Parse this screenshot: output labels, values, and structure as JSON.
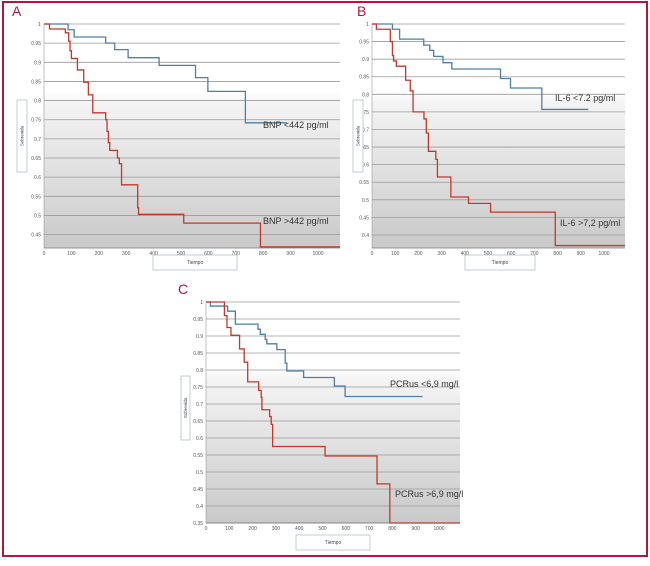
{
  "colors": {
    "frame": "#b0173c",
    "panel_letter": "#b0173c",
    "low_group": "#4f7ea6",
    "high_group": "#c0392b",
    "grid": "#9a9a9a"
  },
  "chart_data": [
    {
      "panel": "A",
      "type": "line",
      "step": true,
      "xlabel": "Tiempo",
      "ylabel": "Sobrevida",
      "xlim": [
        0,
        1100
      ],
      "ylim": [
        0.415,
        1
      ],
      "xticks": [
        0,
        100,
        200,
        300,
        400,
        500,
        600,
        700,
        800,
        900,
        1000
      ],
      "yticks": [
        "1",
        "0.95",
        "0.9",
        "0.85",
        "0.8",
        "0.75",
        "0.7",
        "0.65",
        "0.6",
        "0.55",
        "0.5",
        "0.45"
      ],
      "grid": true,
      "series": [
        {
          "name": "BNP <442 pg/ml",
          "group": "low",
          "points": [
            [
              0,
              1
            ],
            [
              88,
              0.985
            ],
            [
              110,
              0.966
            ],
            [
              225,
              0.95
            ],
            [
              258,
              0.933
            ],
            [
              307,
              0.912
            ],
            [
              420,
              0.892
            ],
            [
              553,
              0.86
            ],
            [
              598,
              0.824
            ],
            [
              735,
              0.742
            ],
            [
              887,
              0.742
            ]
          ]
        },
        {
          "name": "BNP >442 pg/ml",
          "group": "high",
          "points": [
            [
              0,
              1
            ],
            [
              20,
              0.987
            ],
            [
              78,
              0.977
            ],
            [
              90,
              0.955
            ],
            [
              95,
              0.93
            ],
            [
              100,
              0.91
            ],
            [
              122,
              0.88
            ],
            [
              145,
              0.848
            ],
            [
              162,
              0.815
            ],
            [
              178,
              0.768
            ],
            [
              225,
              0.75
            ],
            [
              230,
              0.72
            ],
            [
              235,
              0.69
            ],
            [
              240,
              0.67
            ],
            [
              268,
              0.65
            ],
            [
              275,
              0.635
            ],
            [
              283,
              0.58
            ],
            [
              342,
              0.52
            ],
            [
              345,
              0.503
            ],
            [
              510,
              0.48
            ],
            [
              790,
              0.418
            ],
            [
              1100,
              0.418
            ]
          ]
        }
      ]
    },
    {
      "panel": "B",
      "type": "line",
      "step": true,
      "xlabel": "Tiempo",
      "ylabel": "Sobrevida",
      "xlim": [
        0,
        1100
      ],
      "ylim": [
        0.363,
        1
      ],
      "xticks": [
        0,
        100,
        200,
        300,
        400,
        500,
        600,
        700,
        800,
        900,
        1000
      ],
      "yticks": [
        "1",
        "0.95",
        "0.9",
        "0.85",
        "0.8",
        "0.75",
        "0.7",
        "0.65",
        "0.6",
        "0.55",
        "0.5",
        "0.45",
        "0.4"
      ],
      "grid": true,
      "series": [
        {
          "name": "IL-6 <7.2 pg/ml",
          "group": "low",
          "points": [
            [
              0,
              1
            ],
            [
              88,
              0.985
            ],
            [
              119,
              0.957
            ],
            [
              223,
              0.94
            ],
            [
              249,
              0.925
            ],
            [
              266,
              0.908
            ],
            [
              306,
              0.89
            ],
            [
              344,
              0.872
            ],
            [
              554,
              0.845
            ],
            [
              597,
              0.818
            ],
            [
              732,
              0.757
            ],
            [
              932,
              0.757
            ]
          ]
        },
        {
          "name": "IL-6 >7,2 pg/ml",
          "group": "high",
          "points": [
            [
              0,
              1
            ],
            [
              19,
              0.985
            ],
            [
              79,
              0.95
            ],
            [
              88,
              0.91
            ],
            [
              93,
              0.895
            ],
            [
              105,
              0.88
            ],
            [
              145,
              0.84
            ],
            [
              165,
              0.81
            ],
            [
              177,
              0.75
            ],
            [
              224,
              0.73
            ],
            [
              234,
              0.69
            ],
            [
              243,
              0.638
            ],
            [
              275,
              0.615
            ],
            [
              282,
              0.565
            ],
            [
              340,
              0.508
            ],
            [
              416,
              0.49
            ],
            [
              511,
              0.465
            ],
            [
              790,
              0.37
            ],
            [
              1100,
              0.37
            ]
          ]
        }
      ]
    },
    {
      "panel": "C",
      "type": "line",
      "step": true,
      "xlabel": "Tiempo",
      "ylabel": "Sobrevida",
      "xlim": [
        0,
        1100
      ],
      "ylim": [
        0.35,
        1
      ],
      "xticks": [
        0,
        100,
        200,
        300,
        400,
        500,
        600,
        700,
        800,
        900,
        1000
      ],
      "yticks": [
        "1",
        "0.95",
        "0.9",
        "0.85",
        "0.8",
        "0.75",
        "0.7",
        "0.65",
        "0.6",
        "0.55",
        "0.5",
        "0.45",
        "0.4",
        "0.35"
      ],
      "grid": true,
      "series": [
        {
          "name": "PCRus <6,9 mg/l",
          "group": "low",
          "points": [
            [
              0,
              1
            ],
            [
              19,
              0.988
            ],
            [
              93,
              0.973
            ],
            [
              126,
              0.935
            ],
            [
              223,
              0.92
            ],
            [
              233,
              0.905
            ],
            [
              254,
              0.89
            ],
            [
              261,
              0.877
            ],
            [
              304,
              0.86
            ],
            [
              340,
              0.82
            ],
            [
              347,
              0.797
            ],
            [
              419,
              0.778
            ],
            [
              551,
              0.753
            ],
            [
              597,
              0.722
            ],
            [
              929,
              0.722
            ]
          ]
        },
        {
          "name": "PCRus >6,9 mg/l",
          "group": "high",
          "points": [
            [
              0,
              1
            ],
            [
              79,
              0.96
            ],
            [
              90,
              0.925
            ],
            [
              107,
              0.902
            ],
            [
              144,
              0.862
            ],
            [
              164,
              0.823
            ],
            [
              179,
              0.765
            ],
            [
              226,
              0.74
            ],
            [
              237,
              0.72
            ],
            [
              240,
              0.683
            ],
            [
              273,
              0.663
            ],
            [
              280,
              0.64
            ],
            [
              286,
              0.575
            ],
            [
              511,
              0.547
            ],
            [
              734,
              0.465
            ],
            [
              789,
              0.35
            ],
            [
              1100,
              0.35
            ]
          ]
        }
      ]
    }
  ]
}
